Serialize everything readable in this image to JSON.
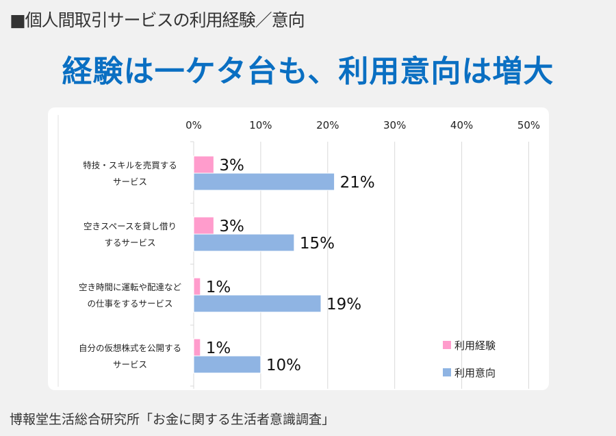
{
  "header": {
    "title": "■個人間取引サービスの利用経験／意向"
  },
  "headline": "経験は一ケタ台も、利用意向は増大",
  "footer": {
    "source": "博報堂生活総合研究所「お金に関する生活者意識調査」"
  },
  "chart_data": {
    "type": "bar",
    "orientation": "horizontal",
    "categories": [
      [
        "特技・スキルを売買する",
        "サービス"
      ],
      [
        "空きスペースを貸し借り",
        "するサービス"
      ],
      [
        "空き時間に運転や配達など",
        "の仕事をするサービス"
      ],
      [
        "自分の仮想株式を公開する",
        "サービス"
      ]
    ],
    "series": [
      {
        "name": "利用経験",
        "color": "#ff9ccc",
        "values": [
          3,
          3,
          1,
          1
        ],
        "labels": [
          "3%",
          "3%",
          "1%",
          "1%"
        ]
      },
      {
        "name": "利用意向",
        "color": "#8fb4e3",
        "values": [
          21,
          15,
          19,
          10
        ],
        "labels": [
          "21%",
          "15%",
          "19%",
          "10%"
        ]
      }
    ],
    "xlim": [
      0,
      50
    ],
    "xticks": [
      "0%",
      "10%",
      "20%",
      "30%",
      "40%",
      "50%"
    ],
    "grid": true,
    "legend": "bottom-right"
  }
}
